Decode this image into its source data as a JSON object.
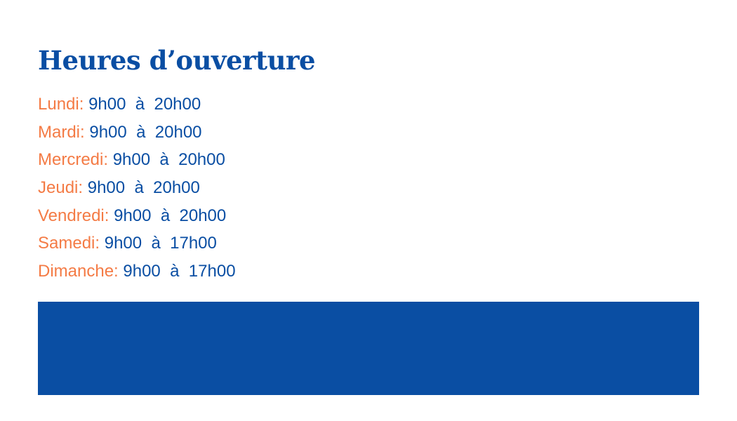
{
  "title": "Heures d’ouverture",
  "colors": {
    "primary": "#0a4ea3",
    "accent": "#f47b45"
  },
  "hours": [
    {
      "day": "Lundi:",
      "time": "9h00  à  20h00"
    },
    {
      "day": "Mardi:",
      "time": "9h00  à  20h00"
    },
    {
      "day": "Mercredi:",
      "time": "9h00  à  20h00"
    },
    {
      "day": "Jeudi:",
      "time": "9h00  à  20h00"
    },
    {
      "day": "Vendredi:",
      "time": "9h00  à  20h00"
    },
    {
      "day": "Samedi:",
      "time": "9h00  à  17h00"
    },
    {
      "day": "Dimanche:",
      "time": "9h00  à  17h00"
    }
  ]
}
